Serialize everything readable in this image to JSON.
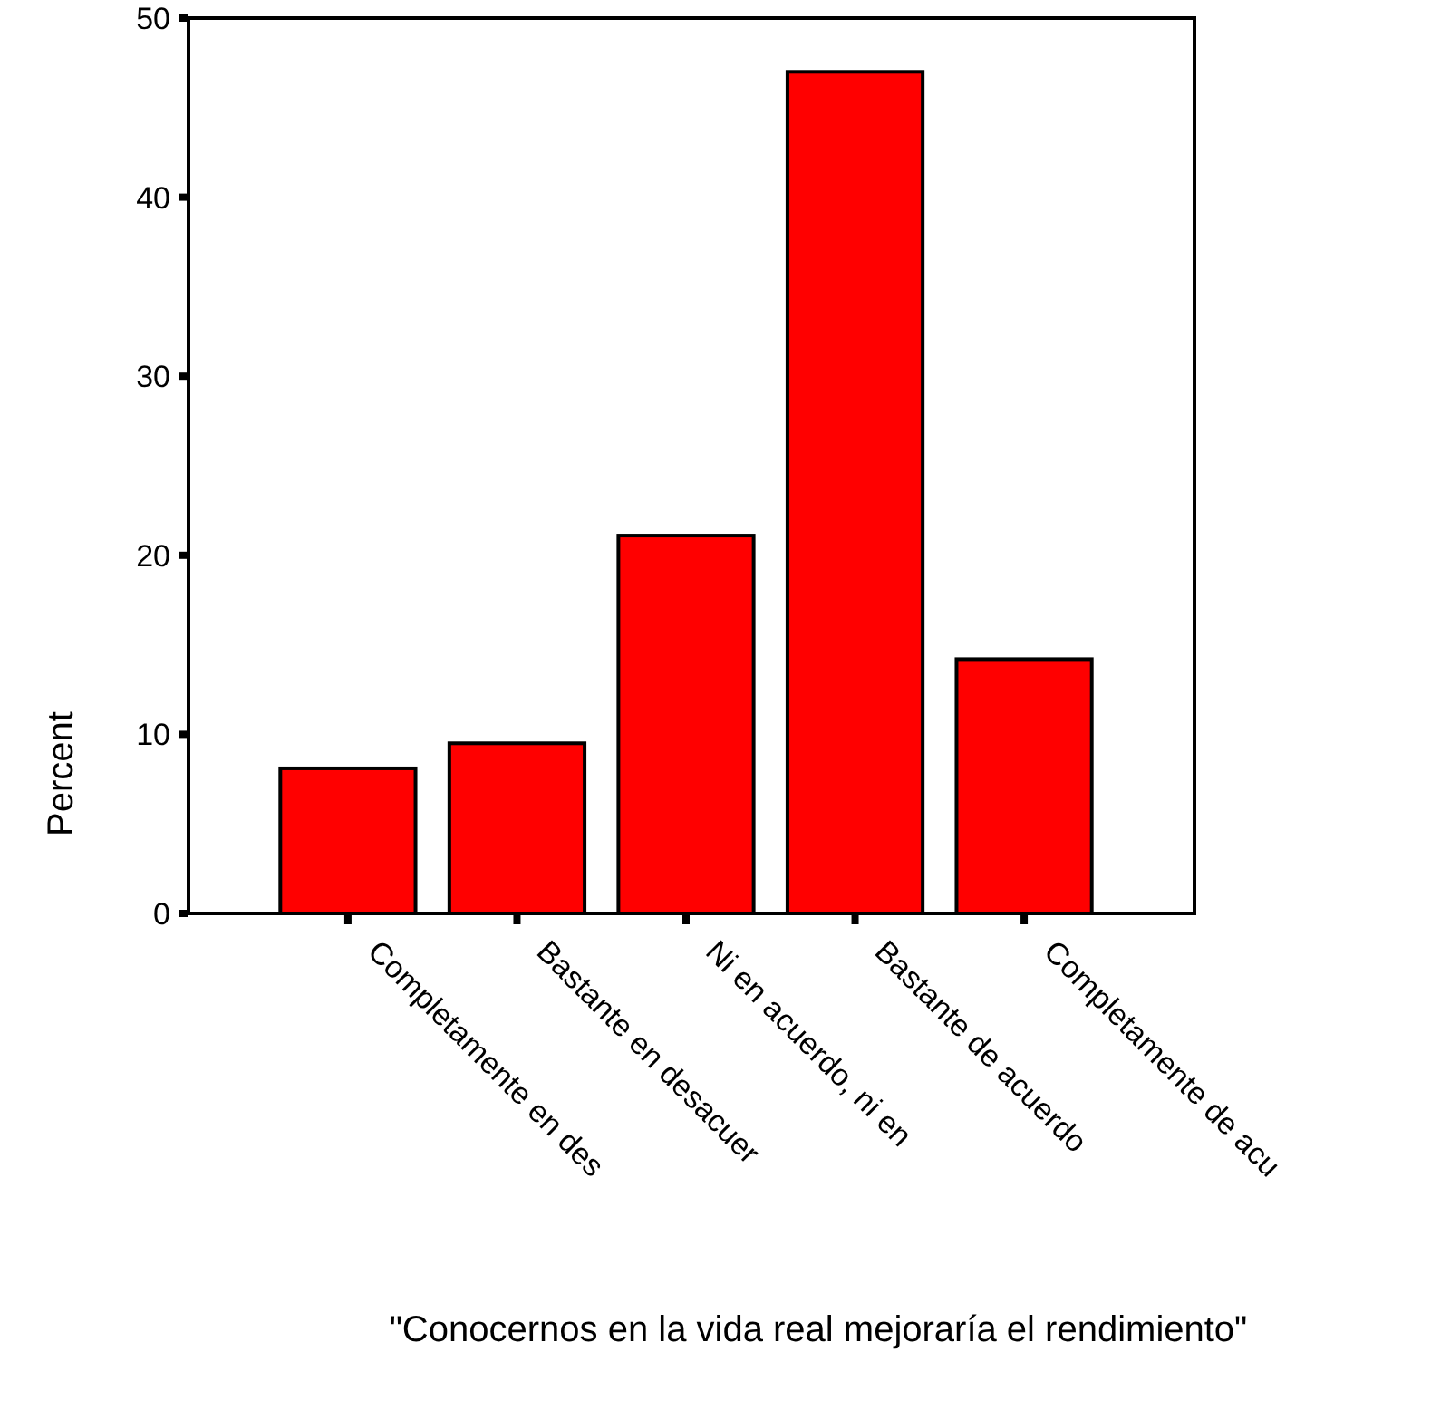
{
  "chart_data": {
    "type": "bar",
    "xlabel": "\"Conocernos en la vida real mejoraría el rendimiento\"",
    "ylabel": "Percent",
    "categories": [
      "Completamente en des",
      "Bastante en desacuer",
      "Ni en acuerdo, ni en",
      "Bastante de acuerdo",
      "Completamente de acu"
    ],
    "values": [
      8.1,
      9.5,
      21.1,
      47.0,
      14.2
    ],
    "color": "#ff0000",
    "ylim": [
      0,
      50
    ],
    "yticks": [
      0,
      10,
      20,
      30,
      40,
      50
    ]
  }
}
